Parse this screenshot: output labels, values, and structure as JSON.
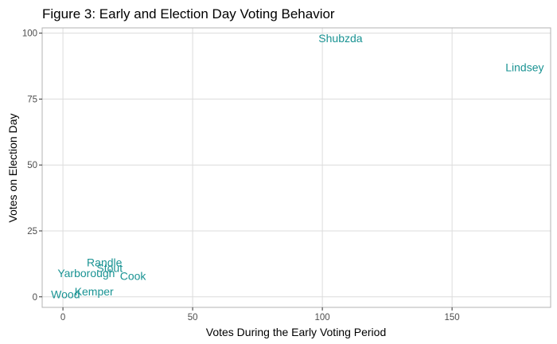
{
  "chart_data": {
    "type": "scatter",
    "title": "Figure 3: Early and Election Day Voting Behavior",
    "xlabel": "Votes During the Early Voting Period",
    "ylabel": "Votes on Election Day",
    "xlim": [
      -8,
      188
    ],
    "ylim": [
      -4,
      102
    ],
    "xticks": [
      0,
      50,
      100,
      150
    ],
    "yticks": [
      0,
      25,
      50,
      75,
      100
    ],
    "grid": true,
    "label_color": "#1a9393",
    "grid_color": "#dcdcdc",
    "border_color": "#b3b3b3",
    "points": [
      {
        "label": "Shubzda",
        "x": 107,
        "y": 98
      },
      {
        "label": "Lindsey",
        "x": 178,
        "y": 87
      },
      {
        "label": "Randle",
        "x": 16,
        "y": 13
      },
      {
        "label": "Stout",
        "x": 18,
        "y": 11
      },
      {
        "label": "Yarborough",
        "x": 9,
        "y": 9
      },
      {
        "label": "Cook",
        "x": 27,
        "y": 8
      },
      {
        "label": "Kemper",
        "x": 12,
        "y": 2
      },
      {
        "label": "Wood",
        "x": 1,
        "y": 1
      }
    ]
  }
}
